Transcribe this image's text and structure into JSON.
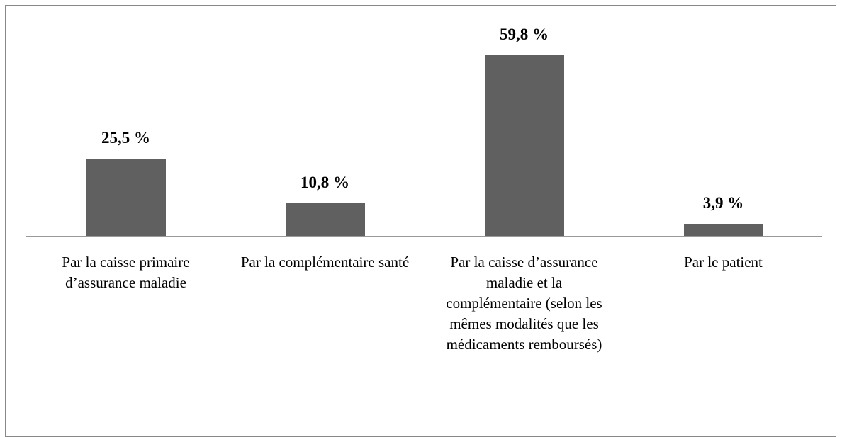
{
  "chart_data": {
    "type": "bar",
    "categories": [
      "Par la caisse primaire d’assurance maladie",
      "Par la complémentaire santé",
      "Par la caisse d’assurance maladie et la complémentaire (selon les mêmes modalités que les médicaments remboursés)",
      "Par le patient"
    ],
    "values": [
      25.5,
      10.8,
      59.8,
      3.9
    ],
    "value_labels": [
      "25,5 %",
      "10,8 %",
      "59,8 %",
      "3,9 %"
    ],
    "color": "#606060"
  }
}
